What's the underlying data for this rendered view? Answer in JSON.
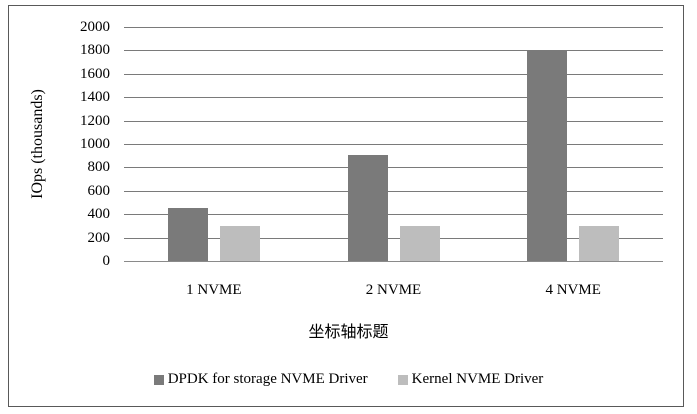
{
  "chart_data": {
    "type": "bar",
    "title": "",
    "xlabel": "坐标轴标题",
    "ylabel": "IOps (thousands)",
    "categories": [
      "1 NVME",
      "2 NVME",
      "4 NVME"
    ],
    "series": [
      {
        "name": "DPDK for storage NVME Driver",
        "color": "#7a7a7a",
        "values": [
          450,
          910,
          1800
        ]
      },
      {
        "name": "Kernel NVME Driver",
        "color": "#bdbdbd",
        "values": [
          300,
          300,
          300
        ]
      }
    ],
    "ylim": [
      0,
      2000
    ],
    "yticks": [
      "0",
      "200",
      "400",
      "600",
      "800",
      "1000",
      "1200",
      "1400",
      "1600",
      "1800",
      "2000"
    ],
    "grid": true,
    "legend_position": "bottom"
  }
}
